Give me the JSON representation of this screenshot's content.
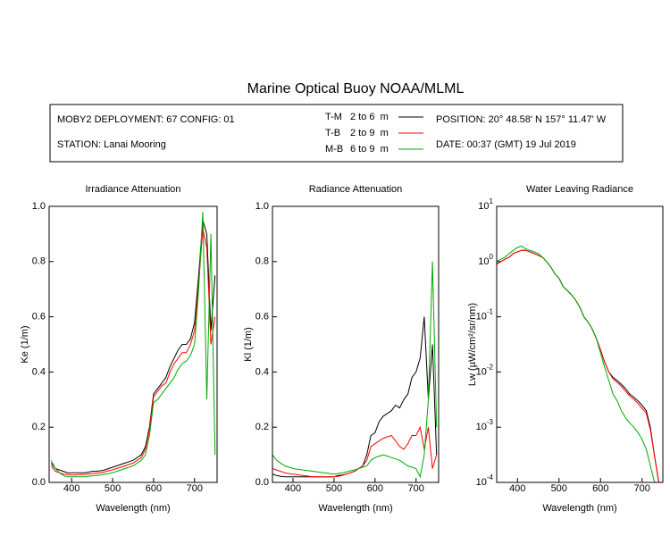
{
  "header": {
    "title": "Marine Optical Buoy NOAA/MLML",
    "deployment": "MOBY2 DEPLOYMENT: 67 CONFIG: 01",
    "station": "STATION: Lanai Mooring",
    "position": "POSITION: 20° 48.58' N   157° 11.47' W",
    "date": "DATE: 00:37 (GMT) 19 Jul 2019",
    "legend": [
      {
        "name": "T-M",
        "depth": "2 to 6  m",
        "color": "#000000"
      },
      {
        "name": "T-B",
        "depth": "2 to 9  m",
        "color": "#ff0000"
      },
      {
        "name": "M-B",
        "depth": "6 to 9  m",
        "color": "#00aa00"
      }
    ]
  },
  "chart_data": [
    {
      "type": "line",
      "title": "Irradiance Attenuation",
      "x_label": "Wavelength (nm)",
      "y_label": "Ke  (1/m)",
      "xlim": [
        345,
        755
      ],
      "xticks": [
        400,
        500,
        600,
        700
      ],
      "ylim": [
        0,
        1
      ],
      "yticks": [
        {
          "value": 0,
          "label": "0.0"
        },
        0.2,
        0.4,
        0.6,
        0.8,
        {
          "value": 1,
          "label": "1.0"
        }
      ],
      "x": [
        350,
        360,
        370,
        380,
        390,
        400,
        410,
        420,
        430,
        440,
        450,
        460,
        470,
        480,
        490,
        500,
        510,
        520,
        530,
        540,
        550,
        560,
        570,
        580,
        590,
        600,
        610,
        620,
        630,
        640,
        650,
        660,
        670,
        680,
        690,
        700,
        710,
        720,
        730,
        740,
        750
      ],
      "series": [
        {
          "color": "#000000",
          "values": [
            0.07,
            0.05,
            0.045,
            0.04,
            0.035,
            0.035,
            0.035,
            0.035,
            0.035,
            0.037,
            0.04,
            0.04,
            0.042,
            0.045,
            0.05,
            0.055,
            0.06,
            0.065,
            0.07,
            0.075,
            0.08,
            0.09,
            0.1,
            0.13,
            0.2,
            0.32,
            0.34,
            0.36,
            0.38,
            0.42,
            0.45,
            0.48,
            0.5,
            0.5,
            0.52,
            0.58,
            0.75,
            0.95,
            0.9,
            0.55,
            0.75
          ]
        },
        {
          "color": "#ff0000",
          "values": [
            0.06,
            0.04,
            0.035,
            0.03,
            0.028,
            0.027,
            0.027,
            0.028,
            0.028,
            0.03,
            0.032,
            0.033,
            0.035,
            0.038,
            0.042,
            0.046,
            0.05,
            0.055,
            0.06,
            0.065,
            0.07,
            0.08,
            0.09,
            0.12,
            0.19,
            0.31,
            0.33,
            0.35,
            0.36,
            0.4,
            0.43,
            0.45,
            0.47,
            0.47,
            0.5,
            0.55,
            0.72,
            0.92,
            0.85,
            0.5,
            0.6
          ]
        },
        {
          "color": "#00aa00",
          "values": [
            0.08,
            0.05,
            0.035,
            0.025,
            0.02,
            0.02,
            0.02,
            0.02,
            0.02,
            0.022,
            0.024,
            0.025,
            0.027,
            0.03,
            0.032,
            0.035,
            0.04,
            0.045,
            0.05,
            0.055,
            0.06,
            0.07,
            0.08,
            0.1,
            0.17,
            0.29,
            0.3,
            0.32,
            0.34,
            0.36,
            0.38,
            0.41,
            0.43,
            0.44,
            0.46,
            0.5,
            0.7,
            0.98,
            0.3,
            0.9,
            0.1
          ]
        }
      ]
    },
    {
      "type": "line",
      "title": "Radiance Attenuation",
      "x_label": "Wavelength (nm)",
      "y_label": "Kl  (1/m)",
      "xlim": [
        350,
        755
      ],
      "xticks": [
        400,
        500,
        600,
        700
      ],
      "ylim": [
        0,
        1
      ],
      "yticks": [
        {
          "value": 0,
          "label": "0.0"
        },
        0.2,
        0.4,
        0.6,
        0.8,
        {
          "value": 1,
          "label": "1.0"
        }
      ],
      "x": [
        350,
        360,
        370,
        380,
        390,
        400,
        410,
        420,
        430,
        440,
        450,
        460,
        470,
        480,
        490,
        500,
        510,
        520,
        530,
        540,
        550,
        560,
        570,
        580,
        590,
        600,
        610,
        620,
        630,
        640,
        650,
        660,
        670,
        680,
        690,
        700,
        710,
        720,
        730,
        740,
        750
      ],
      "series": [
        {
          "color": "#000000",
          "values": [
            0.03,
            0.025,
            0.022,
            0.02,
            0.02,
            0.02,
            0.02,
            0.02,
            0.02,
            0.02,
            0.02,
            0.02,
            0.02,
            0.02,
            0.02,
            0.02,
            0.025,
            0.027,
            0.03,
            0.035,
            0.04,
            0.05,
            0.06,
            0.1,
            0.17,
            0.18,
            0.22,
            0.24,
            0.25,
            0.26,
            0.28,
            0.27,
            0.3,
            0.32,
            0.38,
            0.4,
            0.45,
            0.6,
            0.3,
            0.5,
            0.1
          ]
        },
        {
          "color": "#ff0000",
          "values": [
            0.05,
            0.045,
            0.04,
            0.035,
            0.032,
            0.03,
            0.028,
            0.026,
            0.024,
            0.022,
            0.02,
            0.02,
            0.02,
            0.02,
            0.02,
            0.02,
            0.022,
            0.025,
            0.03,
            0.035,
            0.04,
            0.05,
            0.06,
            0.08,
            0.13,
            0.14,
            0.15,
            0.16,
            0.165,
            0.17,
            0.15,
            0.13,
            0.12,
            0.14,
            0.17,
            0.17,
            0.2,
            0.12,
            0.2,
            0.05,
            0.1
          ]
        },
        {
          "color": "#00aa00",
          "values": [
            0.1,
            0.08,
            0.07,
            0.06,
            0.055,
            0.05,
            0.048,
            0.046,
            0.044,
            0.042,
            0.04,
            0.038,
            0.036,
            0.034,
            0.032,
            0.03,
            0.032,
            0.035,
            0.038,
            0.042,
            0.045,
            0.05,
            0.055,
            0.06,
            0.08,
            0.09,
            0.095,
            0.1,
            0.095,
            0.09,
            0.085,
            0.08,
            0.07,
            0.06,
            0.055,
            0.05,
            0.02,
            0.1,
            0.3,
            0.8,
            0.2
          ]
        }
      ]
    },
    {
      "type": "line",
      "title": "Water Leaving Radiance",
      "x_label": "Wavelength (nm)",
      "y_label": "Lw  (µW/cm²/sr/nm)",
      "xlim": [
        350,
        750
      ],
      "xticks": [
        400,
        500,
        600,
        700
      ],
      "log_y": true,
      "ylim": [
        0.0001,
        10
      ],
      "yticks": [
        {
          "value": 0.0001,
          "label": "10",
          "exp": "-4"
        },
        {
          "value": 0.001,
          "label": "10",
          "exp": "-3"
        },
        {
          "value": 0.01,
          "label": "10",
          "exp": "-2"
        },
        {
          "value": 0.1,
          "label": "10",
          "exp": "-1"
        },
        {
          "value": 1,
          "label": "10",
          "exp": "0"
        },
        {
          "value": 10,
          "label": "10",
          "exp": "1"
        }
      ],
      "x": [
        350,
        360,
        370,
        380,
        390,
        400,
        410,
        420,
        430,
        440,
        450,
        460,
        470,
        480,
        490,
        500,
        510,
        520,
        530,
        540,
        550,
        560,
        570,
        580,
        590,
        600,
        610,
        620,
        630,
        640,
        650,
        660,
        670,
        680,
        690,
        700,
        710,
        720,
        730,
        740
      ],
      "series": [
        {
          "color": "#000000",
          "values": [
            0.9,
            1.0,
            1.1,
            1.2,
            1.4,
            1.5,
            1.6,
            1.6,
            1.5,
            1.4,
            1.3,
            1.2,
            1.0,
            0.8,
            0.6,
            0.5,
            0.35,
            0.3,
            0.25,
            0.2,
            0.15,
            0.1,
            0.08,
            0.06,
            0.04,
            0.025,
            0.015,
            0.01,
            0.008,
            0.007,
            0.006,
            0.005,
            0.004,
            0.0035,
            0.003,
            0.0025,
            0.002,
            0.001,
            0.0003,
            0.0001
          ]
        },
        {
          "color": "#ff0000",
          "values": [
            0.9,
            1.0,
            1.1,
            1.2,
            1.4,
            1.5,
            1.6,
            1.6,
            1.5,
            1.4,
            1.3,
            1.2,
            1.0,
            0.8,
            0.6,
            0.5,
            0.35,
            0.3,
            0.25,
            0.2,
            0.15,
            0.1,
            0.08,
            0.06,
            0.04,
            0.025,
            0.015,
            0.01,
            0.0075,
            0.0065,
            0.0055,
            0.0045,
            0.0037,
            0.0032,
            0.0027,
            0.0022,
            0.0018,
            0.0009,
            0.0003,
            0.0001
          ]
        },
        {
          "color": "#00aa00",
          "values": [
            1.0,
            1.1,
            1.2,
            1.4,
            1.6,
            1.8,
            1.9,
            1.7,
            1.6,
            1.5,
            1.4,
            1.2,
            1.0,
            0.8,
            0.6,
            0.5,
            0.35,
            0.3,
            0.25,
            0.2,
            0.15,
            0.1,
            0.08,
            0.06,
            0.04,
            0.022,
            0.012,
            0.007,
            0.004,
            0.003,
            0.002,
            0.0015,
            0.0012,
            0.001,
            0.0008,
            0.0006,
            0.0004,
            0.0002,
            0.0001,
            0.0001
          ]
        }
      ]
    }
  ]
}
